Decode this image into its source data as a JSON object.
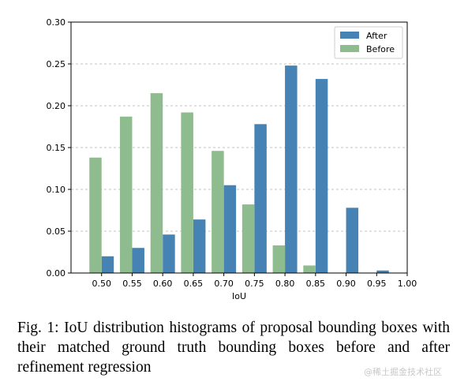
{
  "chart_data": {
    "type": "bar",
    "xlabel": "IoU",
    "ylabel": "",
    "ylim": [
      0,
      0.3
    ],
    "xlim": [
      0.45,
      1.0
    ],
    "xticks": [
      "0.50",
      "0.55",
      "0.60",
      "0.65",
      "0.70",
      "0.75",
      "0.80",
      "0.85",
      "0.90",
      "0.95",
      "1.00"
    ],
    "yticks": [
      "0.00",
      "0.05",
      "0.10",
      "0.15",
      "0.20",
      "0.25",
      "0.30"
    ],
    "grid": "horizontal dashed",
    "legend_position": "top-right",
    "categories": [
      0.5,
      0.55,
      0.6,
      0.65,
      0.7,
      0.75,
      0.8,
      0.85,
      0.9,
      0.95
    ],
    "series": [
      {
        "name": "After",
        "color": "#4682b4",
        "values": [
          0.02,
          0.03,
          0.046,
          0.064,
          0.105,
          0.178,
          0.248,
          0.232,
          0.078,
          0.003
        ]
      },
      {
        "name": "Before",
        "color": "#8fbc8f",
        "values": [
          0.138,
          0.187,
          0.215,
          0.192,
          0.146,
          0.082,
          0.033,
          0.009,
          0.0,
          0.0
        ]
      }
    ]
  },
  "caption": "Fig. 1: IoU distribution histograms of proposal bounding boxes with their matched ground truth bounding boxes before and after refinement regression",
  "watermark": "@稀土掘金技术社区"
}
